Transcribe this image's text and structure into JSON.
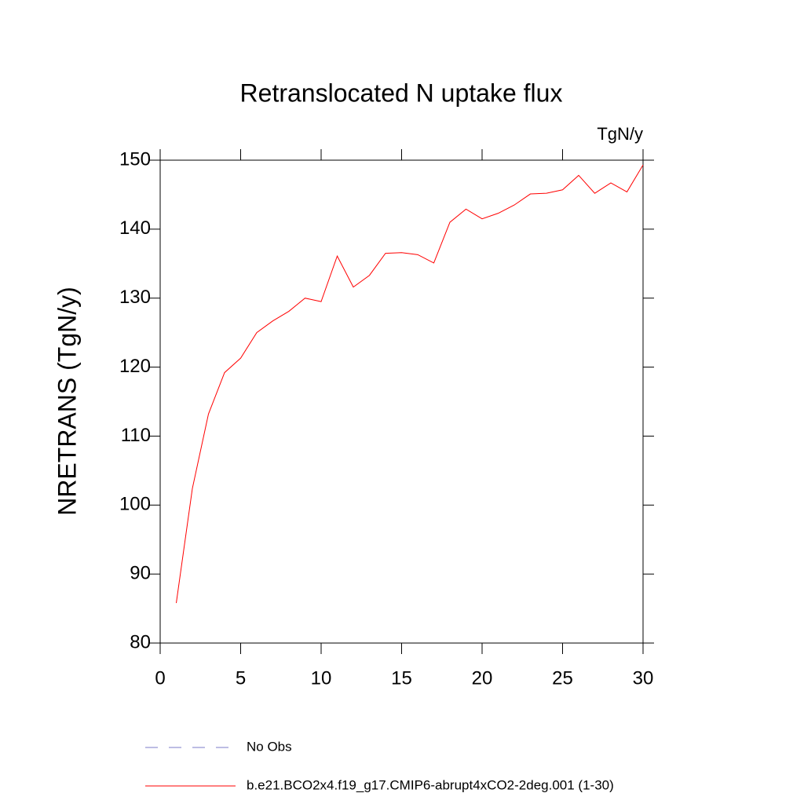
{
  "chart_data": {
    "type": "line",
    "title": "Retranslocated N uptake flux",
    "units_label": "TgN/y",
    "y_label": "NRETRANS  (TgN/y)",
    "x": [
      1,
      2,
      3,
      4,
      5,
      6,
      7,
      8,
      9,
      10,
      11,
      12,
      13,
      14,
      15,
      16,
      17,
      18,
      19,
      20,
      21,
      22,
      23,
      24,
      25,
      26,
      27,
      28,
      29,
      30
    ],
    "series": [
      {
        "name": "No Obs",
        "color": "#7b7bc8",
        "dash": "dashed",
        "values": [
          null,
          null,
          null,
          null,
          null,
          null,
          null,
          null,
          null,
          null,
          null,
          null,
          null,
          null,
          null,
          null,
          null,
          null,
          null,
          null,
          null,
          null,
          null,
          null,
          null,
          null,
          null,
          null,
          null,
          null
        ]
      },
      {
        "name": "b.e21.BCO2x4.f19_g17.CMIP6-abrupt4xCO2-2deg.001 (1-30)",
        "color": "#ff0000",
        "dash": "solid",
        "values": [
          85.8,
          102.4,
          113.2,
          119.2,
          121.3,
          125.0,
          126.7,
          128.1,
          130.0,
          129.5,
          136.1,
          131.6,
          133.3,
          136.5,
          136.6,
          136.3,
          135.1,
          141.0,
          142.9,
          141.5,
          142.3,
          143.5,
          145.1,
          145.2,
          145.7,
          147.8,
          145.2,
          146.7,
          145.4,
          149.3
        ]
      }
    ],
    "xlim": [
      0,
      30
    ],
    "xticks": [
      0,
      5,
      10,
      15,
      20,
      25,
      30
    ],
    "ylim": [
      80,
      150
    ],
    "yticks": [
      80,
      90,
      100,
      110,
      120,
      130,
      140,
      150
    ],
    "grid": false
  }
}
